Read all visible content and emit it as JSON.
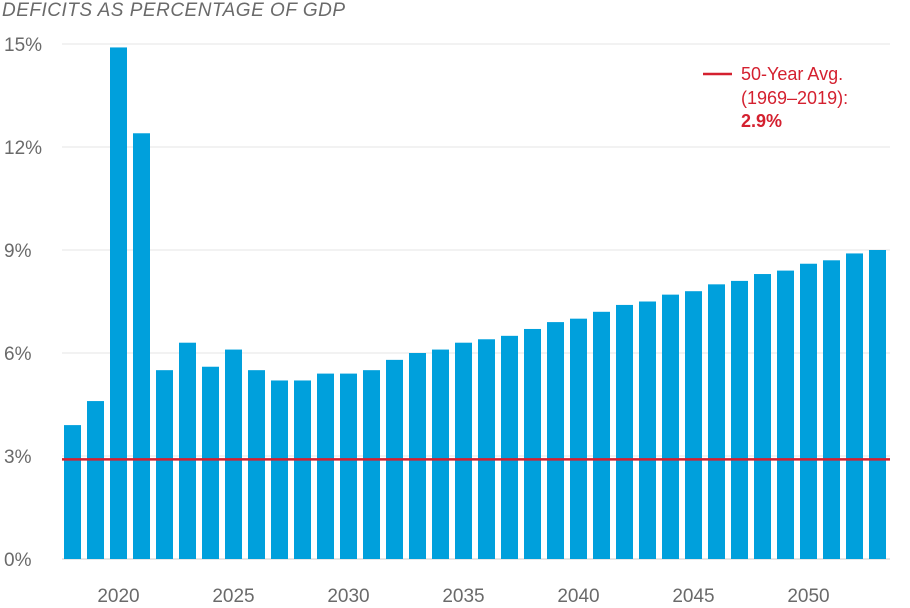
{
  "chart_data": {
    "type": "bar",
    "title": "DEFICITS AS PERCENTAGE OF GDP",
    "xlabel": "",
    "ylabel": "",
    "ylim": [
      0,
      15
    ],
    "yticks": [
      0,
      3,
      6,
      9,
      12,
      15
    ],
    "ytick_labels": [
      "0%",
      "3%",
      "6%",
      "9%",
      "12%",
      "15%"
    ],
    "xticks": [
      2020,
      2025,
      2030,
      2035,
      2040,
      2045,
      2050
    ],
    "grid": "horizontal",
    "bar_color": "#00a0dc",
    "categories": [
      2018,
      2019,
      2020,
      2021,
      2022,
      2023,
      2024,
      2025,
      2026,
      2027,
      2028,
      2029,
      2030,
      2031,
      2032,
      2033,
      2034,
      2035,
      2036,
      2037,
      2038,
      2039,
      2040,
      2041,
      2042,
      2043,
      2044,
      2045,
      2046,
      2047,
      2048,
      2049,
      2050,
      2051,
      2052,
      2053
    ],
    "values": [
      3.9,
      4.6,
      14.9,
      12.4,
      5.5,
      6.3,
      5.6,
      6.1,
      5.5,
      5.2,
      5.2,
      5.4,
      5.4,
      5.5,
      5.8,
      6.0,
      6.1,
      6.3,
      6.4,
      6.5,
      6.7,
      6.9,
      7.0,
      7.2,
      7.4,
      7.5,
      7.7,
      7.8,
      8.0,
      8.1,
      8.3,
      8.4,
      8.6,
      8.7,
      8.9,
      9.0
    ],
    "reference_line": {
      "value": 2.9,
      "color": "#d4202f",
      "label_line1": "50-Year Avg.",
      "label_line2": "(1969–2019):",
      "label_value": "2.9%"
    },
    "legend_position": "top-right"
  }
}
